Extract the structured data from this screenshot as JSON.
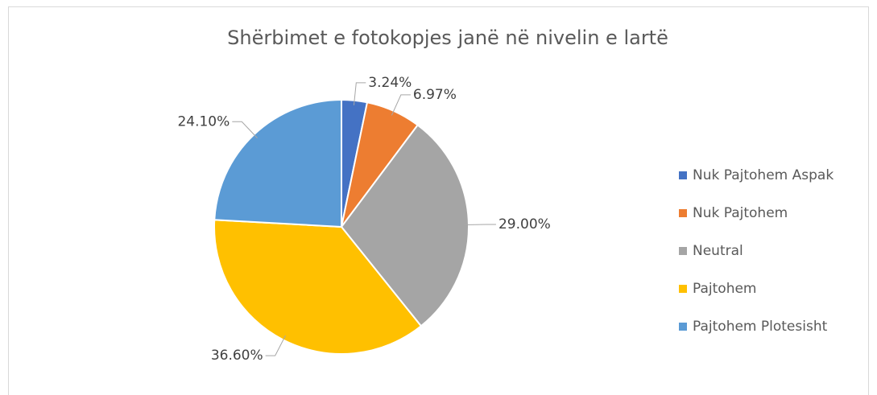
{
  "chart_data": {
    "type": "pie",
    "title": "Shërbimet e fotokopjes janë në nivelin e lartë",
    "categories": [
      "Nuk Pajtohem Aspak",
      "Nuk Pajtohem",
      "Neutral",
      "Pajtohem",
      "Pajtohem Plotesisht"
    ],
    "values": [
      3.24,
      6.97,
      29.0,
      36.6,
      24.1
    ],
    "value_labels": [
      "3.24%",
      "6.97%",
      "29.00%",
      "36.60%",
      "24.10%"
    ],
    "colors": [
      "#4472c4",
      "#ed7d31",
      "#a5a5a5",
      "#ffc000",
      "#5b9bd5"
    ],
    "legend": "right"
  }
}
